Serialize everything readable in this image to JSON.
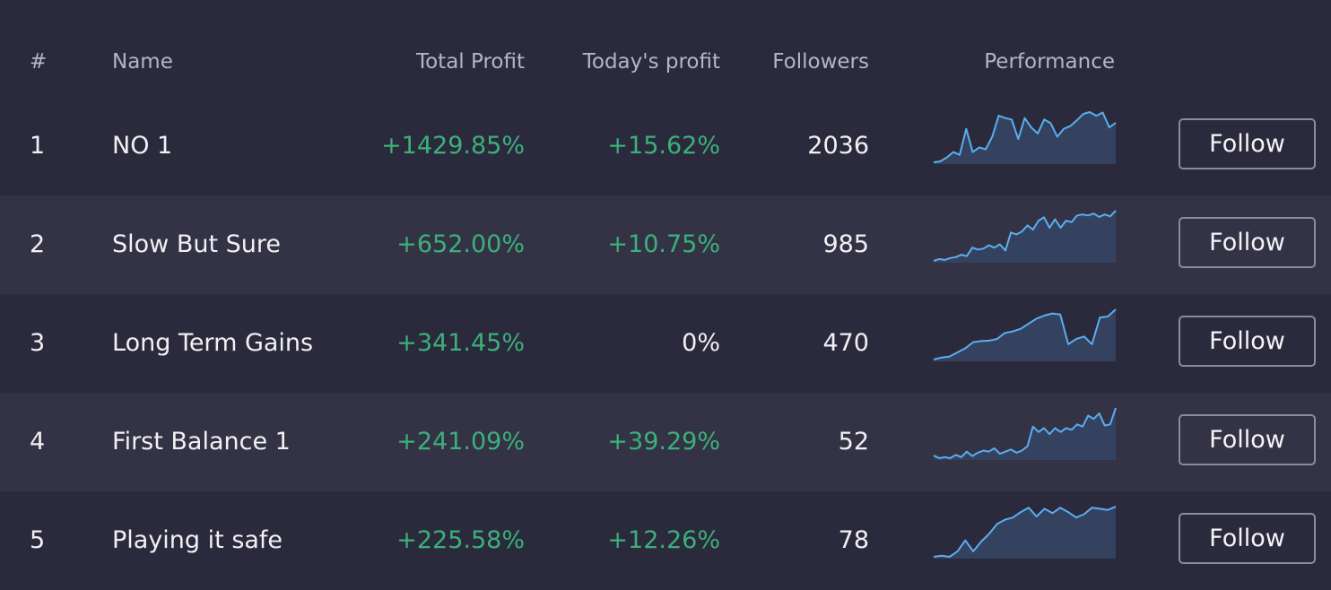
{
  "header": {
    "rank": "#",
    "name": "Name",
    "total_profit": "Total Profit",
    "todays_profit": "Today's profit",
    "followers": "Followers",
    "performance": "Performance"
  },
  "colors": {
    "background": "#2b2a3c",
    "alt_row": "#343346",
    "positive": "#3bb07a",
    "spark_line": "#5aaef0",
    "spark_fill": "#34425f"
  },
  "rows": [
    {
      "rank": "1",
      "name": "NO 1",
      "total_profit": "+1429.85%",
      "todays_profit": "+15.62%",
      "todays_positive": true,
      "followers": "2036",
      "follow_label": "Follow",
      "performance": [
        0.0,
        0.02,
        0.1,
        0.22,
        0.16,
        0.72,
        0.22,
        0.32,
        0.28,
        0.55,
        1.0,
        0.95,
        0.92,
        0.5,
        0.95,
        0.75,
        0.62,
        0.92,
        0.84,
        0.55,
        0.72,
        0.78,
        0.9,
        1.04,
        1.08,
        1.0,
        1.07,
        0.75,
        0.85
      ]
    },
    {
      "rank": "2",
      "name": "Slow But Sure",
      "total_profit": "+652.00%",
      "todays_profit": "+10.75%",
      "todays_positive": true,
      "followers": "985",
      "follow_label": "Follow",
      "performance": [
        0.0,
        0.04,
        0.02,
        0.06,
        0.08,
        0.13,
        0.1,
        0.28,
        0.24,
        0.26,
        0.33,
        0.28,
        0.35,
        0.22,
        0.6,
        0.56,
        0.62,
        0.75,
        0.66,
        0.85,
        0.92,
        0.7,
        0.88,
        0.7,
        0.85,
        0.82,
        0.96,
        0.98,
        0.96,
        1.0,
        0.93,
        0.98,
        0.94,
        1.06
      ]
    },
    {
      "rank": "3",
      "name": "Long Term Gains",
      "total_profit": "+341.45%",
      "todays_profit": "0%",
      "todays_positive": false,
      "followers": "470",
      "follow_label": "Follow",
      "performance": [
        0.0,
        0.04,
        0.06,
        0.14,
        0.22,
        0.34,
        0.36,
        0.37,
        0.4,
        0.52,
        0.55,
        0.6,
        0.7,
        0.8,
        0.86,
        0.9,
        0.88,
        0.3,
        0.4,
        0.45,
        0.3,
        0.82,
        0.84,
        0.98
      ]
    },
    {
      "rank": "4",
      "name": "First Balance 1",
      "total_profit": "+241.09%",
      "todays_profit": "+39.29%",
      "todays_positive": true,
      "followers": "52",
      "follow_label": "Follow",
      "performance": [
        0.05,
        0.0,
        0.02,
        0.0,
        0.06,
        0.02,
        0.12,
        0.04,
        0.1,
        0.14,
        0.12,
        0.18,
        0.08,
        0.12,
        0.16,
        0.1,
        0.14,
        0.22,
        0.58,
        0.48,
        0.55,
        0.44,
        0.55,
        0.48,
        0.55,
        0.52,
        0.62,
        0.58,
        0.78,
        0.72,
        0.82,
        0.6,
        0.62,
        0.92
      ]
    },
    {
      "rank": "5",
      "name": "Playing it safe",
      "total_profit": "+225.58%",
      "todays_profit": "+12.26%",
      "todays_positive": true,
      "followers": "78",
      "follow_label": "Follow",
      "performance": [
        0.0,
        0.02,
        0.0,
        0.1,
        0.3,
        0.1,
        0.28,
        0.42,
        0.6,
        0.68,
        0.72,
        0.82,
        0.9,
        0.74,
        0.88,
        0.8,
        0.9,
        0.82,
        0.72,
        0.78,
        0.9,
        0.88,
        0.86,
        0.92
      ]
    }
  ]
}
